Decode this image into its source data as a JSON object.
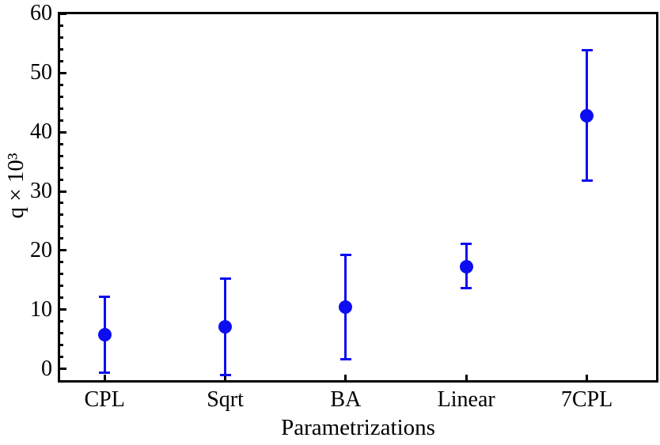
{
  "chart_data": {
    "type": "scatter",
    "title": "",
    "xlabel": "Parametrizations",
    "ylabel": "q × 10³",
    "categories": [
      "CPL",
      "Sqrt",
      "BA",
      "Linear",
      "7CPL"
    ],
    "series": [
      {
        "name": "q x 10^3",
        "values": [
          5.8,
          7.1,
          10.4,
          17.2,
          42.8
        ],
        "err_upper": [
          12.2,
          15.2,
          19.2,
          21.1,
          53.8
        ],
        "err_lower": [
          -0.6,
          -1.0,
          1.7,
          13.6,
          31.8
        ]
      }
    ],
    "ylim": [
      -2.3,
      60.3
    ],
    "y_major_ticks": [
      0,
      10,
      20,
      30,
      40,
      50,
      60
    ],
    "y_tick_labels": [
      "0",
      "10",
      "20",
      "30",
      "40",
      "50",
      "60"
    ],
    "y_minor_step": 2,
    "grid": false,
    "legend": false,
    "point_color": "#0d0df2",
    "frame_color": "#000000",
    "text_color": "#000000",
    "background": "#ffffff"
  }
}
